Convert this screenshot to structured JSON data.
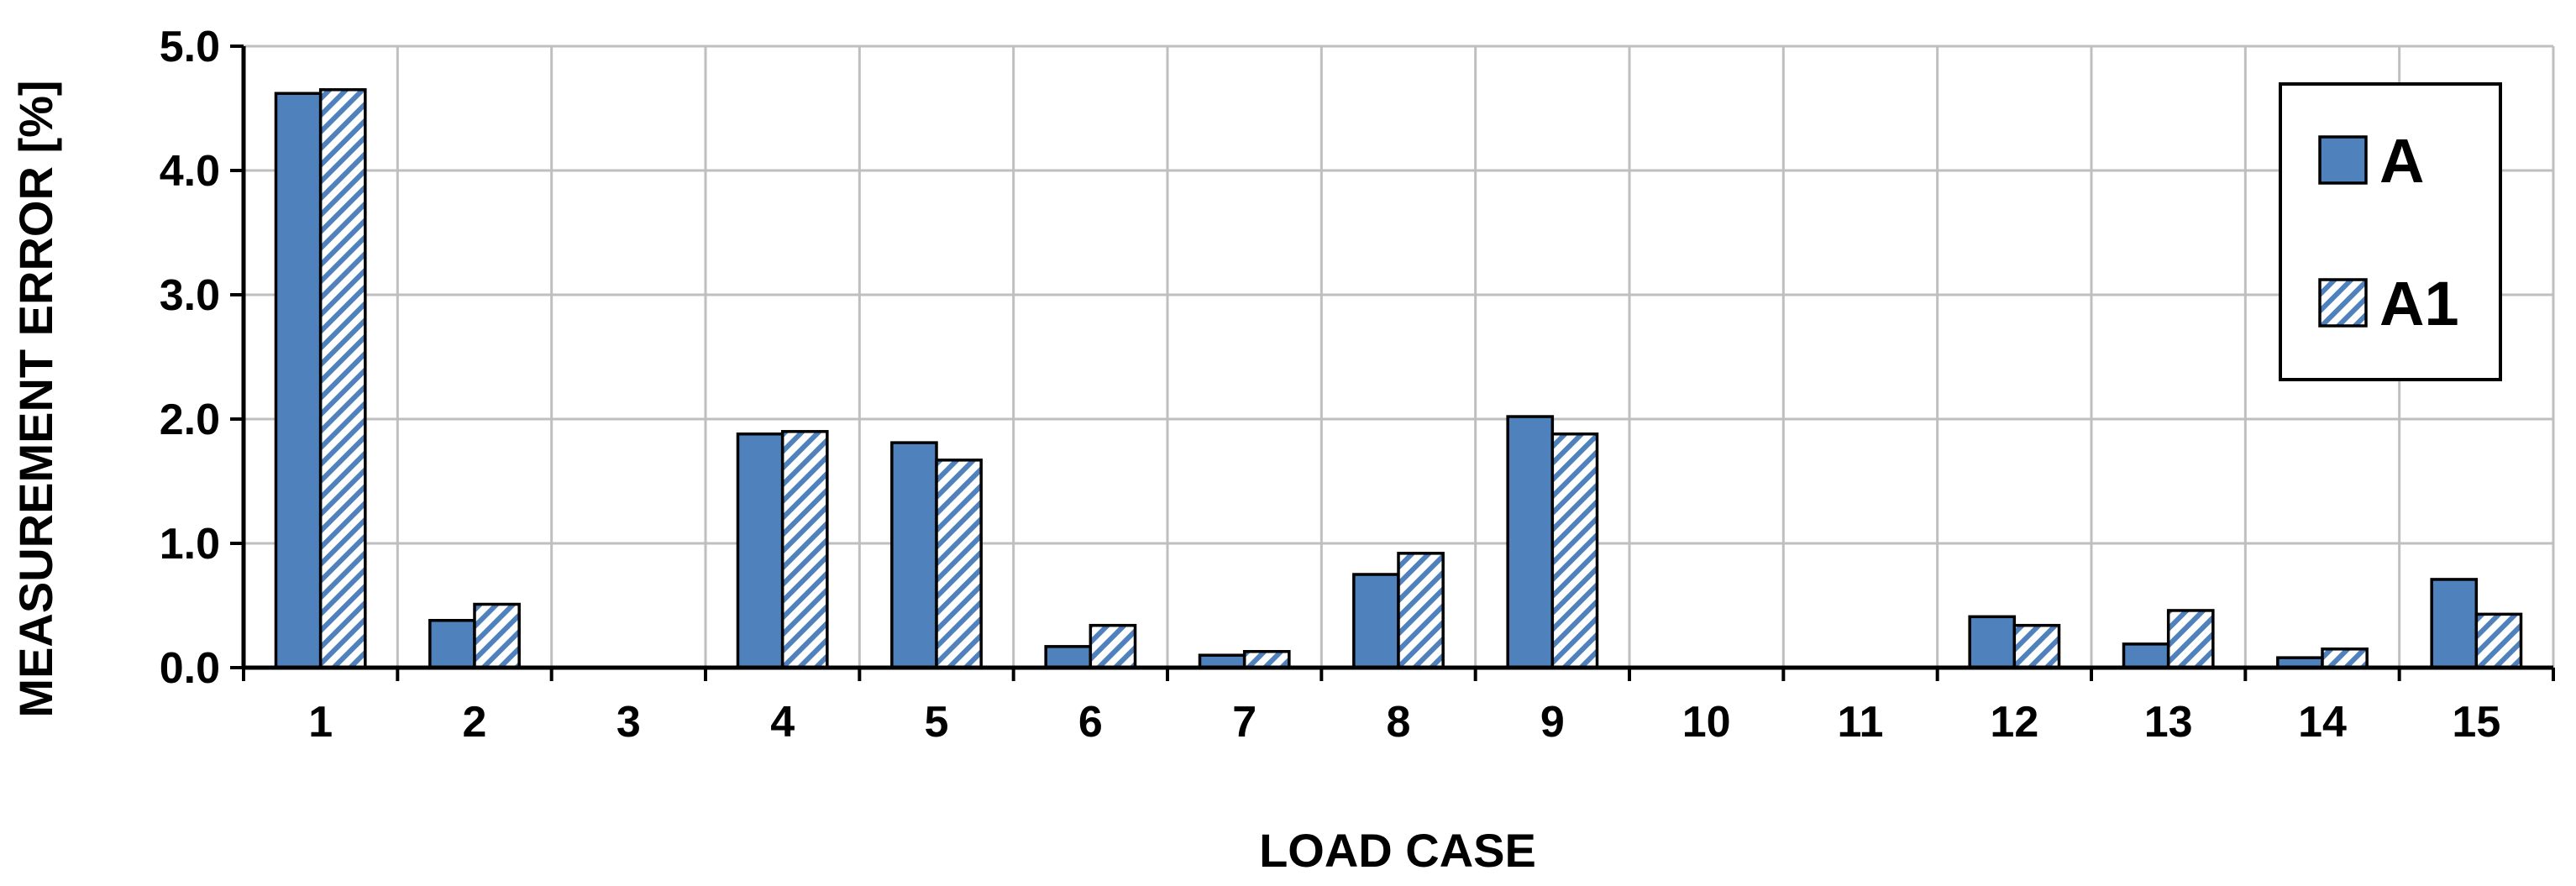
{
  "chart_data": {
    "type": "bar",
    "xlabel": "LOAD CASE",
    "ylabel": "MEASUREMENT ERROR [%]",
    "categories": [
      "1",
      "2",
      "3",
      "4",
      "5",
      "6",
      "7",
      "8",
      "9",
      "10",
      "11",
      "12",
      "13",
      "14",
      "15"
    ],
    "ylim": [
      0,
      5
    ],
    "yticks": [
      "0.0",
      "1.0",
      "2.0",
      "3.0",
      "4.0",
      "5.0"
    ],
    "grid": true,
    "legend_position": "top-right",
    "series": [
      {
        "name": "A",
        "style": "solid",
        "color": "#4f81bd",
        "values": [
          4.62,
          0.38,
          0,
          1.88,
          1.81,
          0.17,
          0.1,
          0.75,
          2.02,
          0,
          0,
          0.41,
          0.19,
          0.08,
          0.71
        ]
      },
      {
        "name": "A1",
        "style": "hatched",
        "color": "#4f81bd",
        "values": [
          4.65,
          0.51,
          0,
          1.9,
          1.67,
          0.34,
          0.13,
          0.92,
          1.88,
          0,
          0,
          0.34,
          0.46,
          0.15,
          0.43
        ]
      }
    ]
  }
}
